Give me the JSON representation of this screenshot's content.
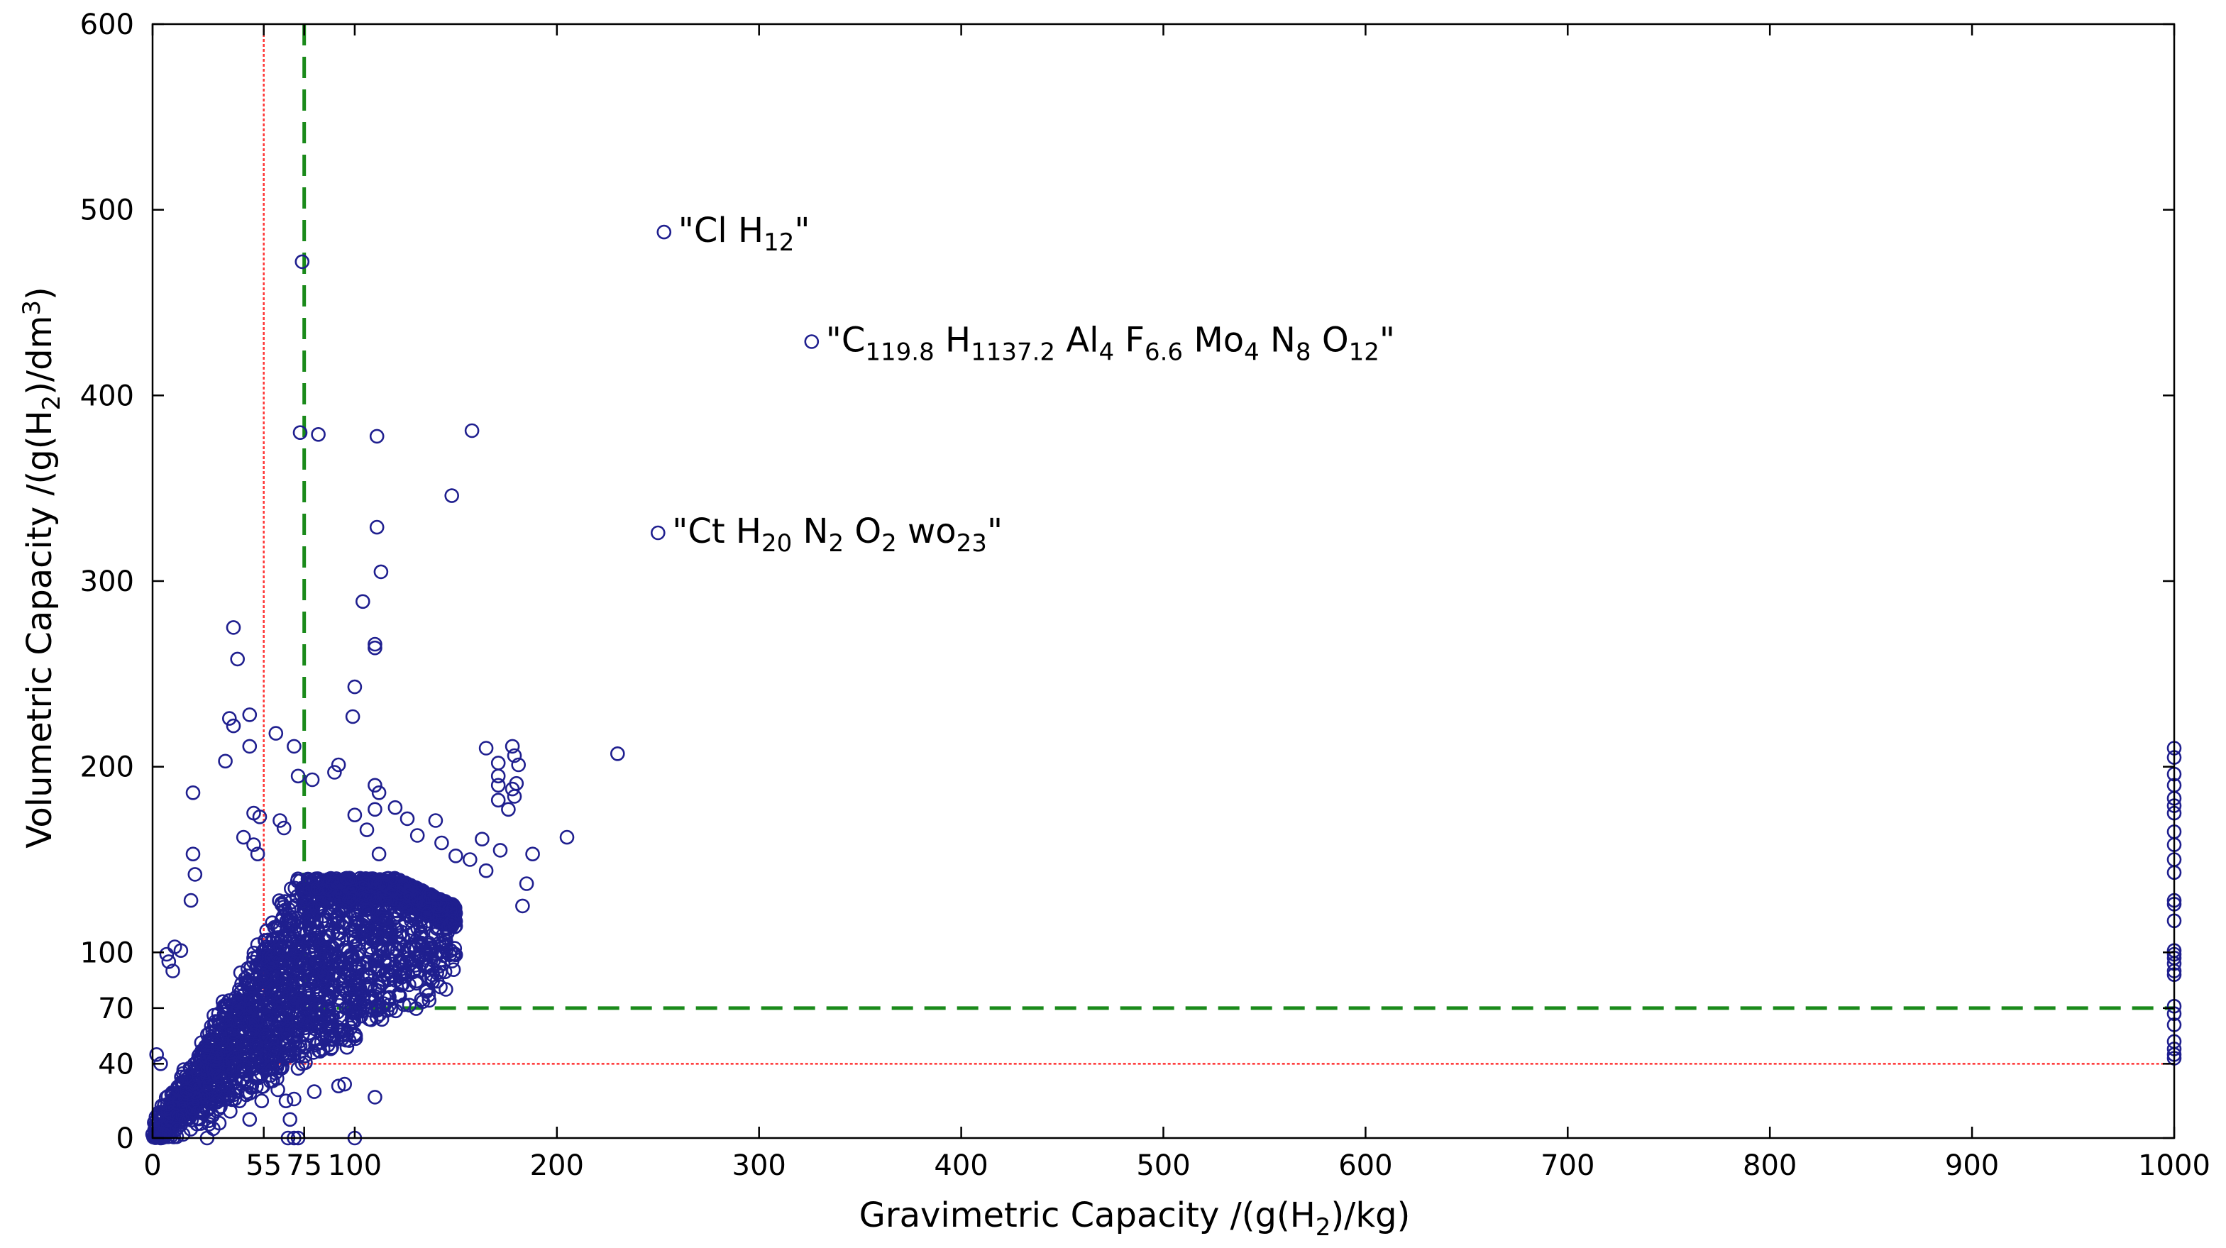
{
  "chart_data": {
    "type": "scatter",
    "title": "",
    "xlabel": {
      "main": "Gravimetric Capacity /(g(H",
      "sub": "2",
      "tail": ")/kg)"
    },
    "ylabel": {
      "main": "Volumetric Capacity /(g(H",
      "sub": "2",
      "mid": ")/dm",
      "sup": "3",
      "tail": ")"
    },
    "xlim": [
      0,
      1000
    ],
    "ylim": [
      0,
      600
    ],
    "x_ticks": [
      0,
      55,
      75,
      100,
      200,
      300,
      400,
      500,
      600,
      700,
      800,
      900,
      1000
    ],
    "y_ticks": [
      0,
      40,
      70,
      100,
      200,
      300,
      400,
      500,
      600
    ],
    "grid": false,
    "legend": "none",
    "colors": {
      "points": "#1f1f8f",
      "target_2017": "#1a8a1a",
      "target_2020": "#ff3333"
    },
    "reference_lines": [
      {
        "name": "",
        "x": 55,
        "y": 40,
        "style": "dotted",
        "color": "#ff3333"
      },
      {
        "name": "",
        "x": 75,
        "y": 70,
        "style": "dashed",
        "color": "#1a8a1a"
      }
    ],
    "cluster": {
      "description_hidden": true,
      "y_slope_low": 0.6,
      "y_slope_high": 1.9,
      "x_max": 150,
      "y_cap": 140,
      "count": 2600
    },
    "points": [
      [
        253,
        488
      ],
      [
        326,
        429
      ],
      [
        250,
        326
      ],
      [
        74,
        472
      ],
      [
        73,
        380
      ],
      [
        82,
        379
      ],
      [
        111,
        378
      ],
      [
        158,
        381
      ],
      [
        148,
        346
      ],
      [
        111,
        329
      ],
      [
        113,
        305
      ],
      [
        104,
        289
      ],
      [
        110,
        266
      ],
      [
        110,
        264
      ],
      [
        40,
        275
      ],
      [
        42,
        258
      ],
      [
        100,
        243
      ],
      [
        38,
        226
      ],
      [
        40,
        222
      ],
      [
        48,
        228
      ],
      [
        48,
        211
      ],
      [
        36,
        203
      ],
      [
        61,
        218
      ],
      [
        70,
        211
      ],
      [
        72,
        195
      ],
      [
        79,
        193
      ],
      [
        92,
        201
      ],
      [
        90,
        197
      ],
      [
        99,
        227
      ],
      [
        230,
        207
      ],
      [
        165,
        210
      ],
      [
        178,
        211
      ],
      [
        179,
        206
      ],
      [
        181,
        201
      ],
      [
        180,
        191
      ],
      [
        178,
        188
      ],
      [
        179,
        184
      ],
      [
        176,
        177
      ],
      [
        171,
        202
      ],
      [
        171,
        195
      ],
      [
        171,
        190
      ],
      [
        171,
        182
      ],
      [
        205,
        162
      ],
      [
        188,
        153
      ],
      [
        185,
        137
      ],
      [
        183,
        125
      ],
      [
        163,
        161
      ],
      [
        172,
        155
      ],
      [
        110,
        190
      ],
      [
        112,
        186
      ],
      [
        110,
        177
      ],
      [
        20,
        186
      ],
      [
        20,
        153
      ],
      [
        21,
        142
      ],
      [
        50,
        175
      ],
      [
        53,
        173
      ],
      [
        63,
        171
      ],
      [
        65,
        167
      ],
      [
        100,
        174
      ],
      [
        106,
        166
      ],
      [
        112,
        153
      ],
      [
        45,
        162
      ],
      [
        50,
        158
      ],
      [
        52,
        153
      ],
      [
        120,
        178
      ],
      [
        126,
        172
      ],
      [
        140,
        171
      ],
      [
        131,
        163
      ],
      [
        143,
        159
      ],
      [
        157,
        150
      ],
      [
        165,
        144
      ],
      [
        150,
        152
      ],
      [
        19,
        128
      ],
      [
        7,
        99
      ],
      [
        8,
        95
      ],
      [
        11,
        103
      ],
      [
        14,
        101
      ],
      [
        10,
        90
      ],
      [
        110,
        69
      ],
      [
        110,
        22
      ],
      [
        96,
        56
      ],
      [
        100,
        56
      ],
      [
        88,
        55
      ],
      [
        92,
        28
      ],
      [
        95,
        29
      ],
      [
        74,
        40
      ],
      [
        70,
        45
      ],
      [
        80,
        25
      ],
      [
        66,
        20
      ],
      [
        70,
        21
      ],
      [
        54,
        20
      ],
      [
        62,
        26
      ],
      [
        68,
        10
      ],
      [
        67,
        0
      ],
      [
        70,
        0
      ],
      [
        72,
        0
      ],
      [
        27,
        0
      ],
      [
        48,
        10
      ],
      [
        43,
        20
      ],
      [
        41,
        25
      ],
      [
        30,
        5
      ],
      [
        33,
        8
      ],
      [
        0,
        2
      ],
      [
        2,
        1
      ],
      [
        4,
        0
      ],
      [
        8,
        3
      ],
      [
        12,
        5
      ],
      [
        15,
        12
      ],
      [
        20,
        16
      ],
      [
        25,
        22
      ],
      [
        2,
        45
      ],
      [
        4,
        40
      ],
      [
        100,
        0
      ],
      [
        1000,
        210
      ],
      [
        1000,
        205
      ],
      [
        1000,
        196
      ],
      [
        1000,
        190
      ],
      [
        1000,
        183
      ],
      [
        1000,
        179
      ],
      [
        1000,
        175
      ],
      [
        1000,
        165
      ],
      [
        1000,
        158
      ],
      [
        1000,
        150
      ],
      [
        1000,
        143
      ],
      [
        1000,
        128
      ],
      [
        1000,
        126
      ],
      [
        1000,
        117
      ],
      [
        1000,
        101
      ],
      [
        1000,
        99
      ],
      [
        1000,
        97
      ],
      [
        1000,
        94
      ],
      [
        1000,
        90
      ],
      [
        1000,
        88
      ],
      [
        1000,
        71
      ],
      [
        1000,
        67
      ],
      [
        1000,
        61
      ],
      [
        1000,
        52
      ],
      [
        1000,
        48
      ],
      [
        1000,
        45
      ],
      [
        1000,
        43
      ]
    ],
    "annotations": [
      {
        "x": 253,
        "y": 488,
        "parts": [
          {
            "t": "\"Cl H"
          },
          {
            "t": "12",
            "sub": true
          },
          {
            "t": "\""
          }
        ]
      },
      {
        "x": 326,
        "y": 429,
        "parts": [
          {
            "t": "\"C"
          },
          {
            "t": "119.8",
            "sub": true
          },
          {
            "t": " H"
          },
          {
            "t": "1137.2",
            "sub": true
          },
          {
            "t": " Al"
          },
          {
            "t": "4",
            "sub": true
          },
          {
            "t": " F"
          },
          {
            "t": "6.6",
            "sub": true
          },
          {
            "t": " Mo"
          },
          {
            "t": "4",
            "sub": true
          },
          {
            "t": " N"
          },
          {
            "t": "8",
            "sub": true
          },
          {
            "t": " O"
          },
          {
            "t": "12",
            "sub": true
          },
          {
            "t": "\""
          }
        ]
      },
      {
        "x": 250,
        "y": 326,
        "parts": [
          {
            "t": "\"Ct H"
          },
          {
            "t": "20",
            "sub": true
          },
          {
            "t": " N"
          },
          {
            "t": "2",
            "sub": true
          },
          {
            "t": " O"
          },
          {
            "t": "2",
            "sub": true
          },
          {
            "t": " wo"
          },
          {
            "t": "23",
            "sub": true
          },
          {
            "t": "\""
          }
        ]
      }
    ]
  }
}
